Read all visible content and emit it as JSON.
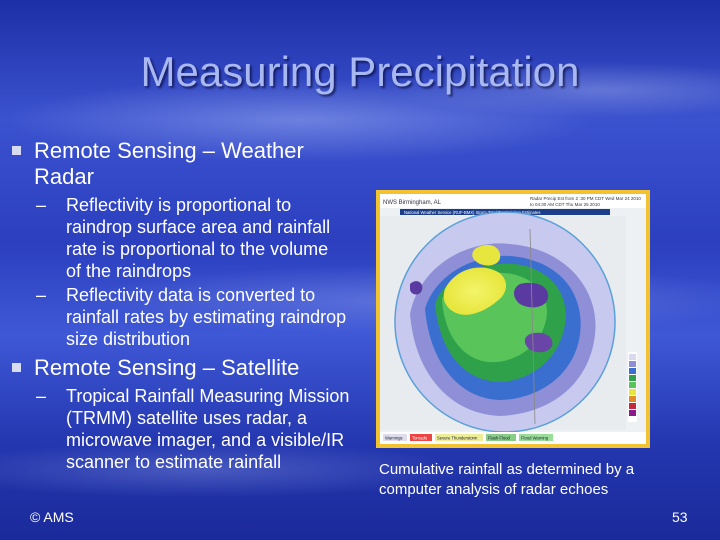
{
  "slide": {
    "title": "Measuring Precipitation",
    "bullets": [
      {
        "text": "Remote Sensing – Weather Radar",
        "sub": [
          "Reflectivity is proportional to raindrop surface area and rainfall rate is proportional to the volume of the raindrops",
          "Reflectivity data is converted to rainfall rates by estimating raindrop size distribution"
        ]
      },
      {
        "text": "Remote Sensing – Satellite",
        "sub": [
          "Tropical Rainfall Measuring Mission (TRMM) satellite uses radar, a microwave imager, and a visible/IR scanner to estimate rainfall"
        ]
      }
    ],
    "sub_dash": "–",
    "image_caption": "Cumulative rainfall as determined by a computer analysis of radar echoes",
    "copyright": "© AMS",
    "page_number": "53"
  },
  "colors": {
    "title": "#a9b8f0",
    "background": "#2b3fbf",
    "image_border": "#f2c230"
  },
  "radar_image": {
    "header_left": "NWS Birmingham, AL",
    "header_right_1": "Radar Precip Est from 2 :30 PM CDT Wed Mar 24 2010",
    "header_right_2": "to 04:30 AM CDT Thu Mar 25 2010",
    "banner": "National Weather Service (RUF-BMX) Storm Total Precipitation Estimates",
    "footer_items": [
      "Warnings",
      "Tornado",
      "Severe Thunderstorm",
      "Flash Flood",
      "Flood Warning"
    ]
  }
}
